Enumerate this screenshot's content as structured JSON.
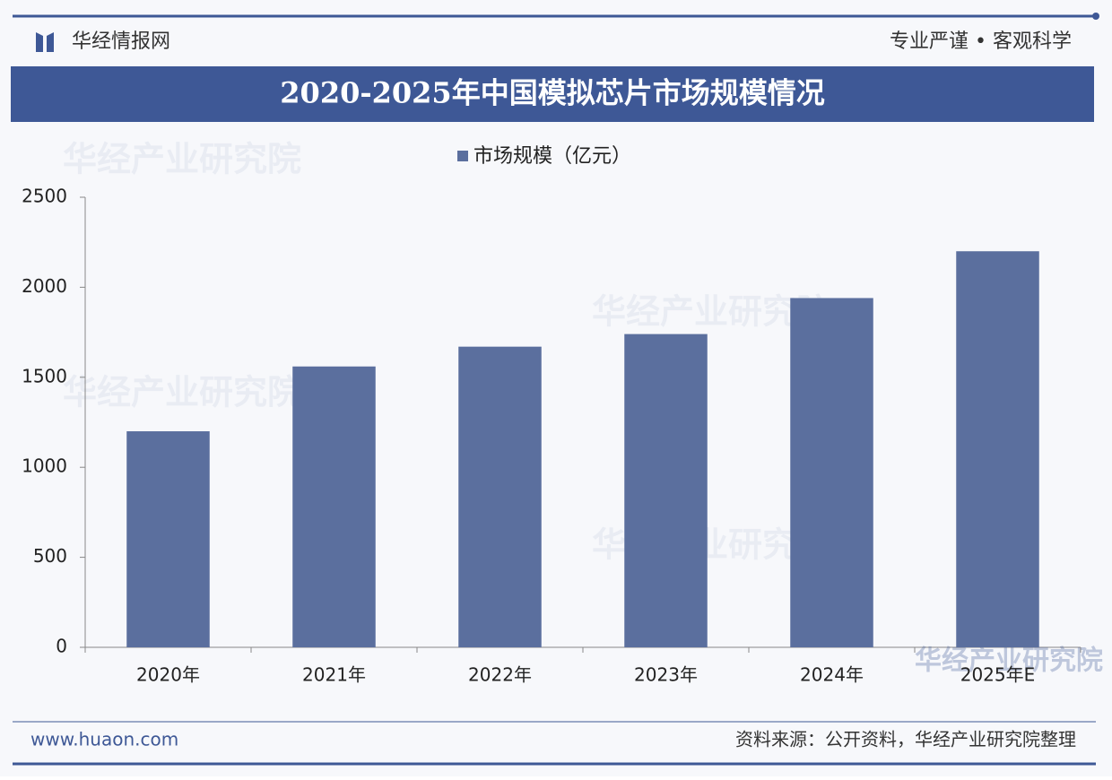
{
  "header": {
    "brand": "华经情报网",
    "slogan": "专业严谨 • 客观科学"
  },
  "chart_data": {
    "type": "bar",
    "title": "2020-2025年中国模拟芯片市场规模情况",
    "categories": [
      "2020年",
      "2021年",
      "2022年",
      "2023年",
      "2024年",
      "2025年E"
    ],
    "series": [
      {
        "name": "市场规模（亿元）",
        "color": "#5b6f9e",
        "values": [
          1200,
          1560,
          1670,
          1740,
          1940,
          2200
        ]
      }
    ],
    "ylim": [
      0,
      2500
    ],
    "yticks": [
      0,
      500,
      1000,
      1500,
      2000,
      2500
    ],
    "grid": false
  },
  "watermark": "华经产业研究院",
  "footer": {
    "url": "www.huaon.com",
    "source": "资料来源：公开资料，华经产业研究院整理"
  }
}
